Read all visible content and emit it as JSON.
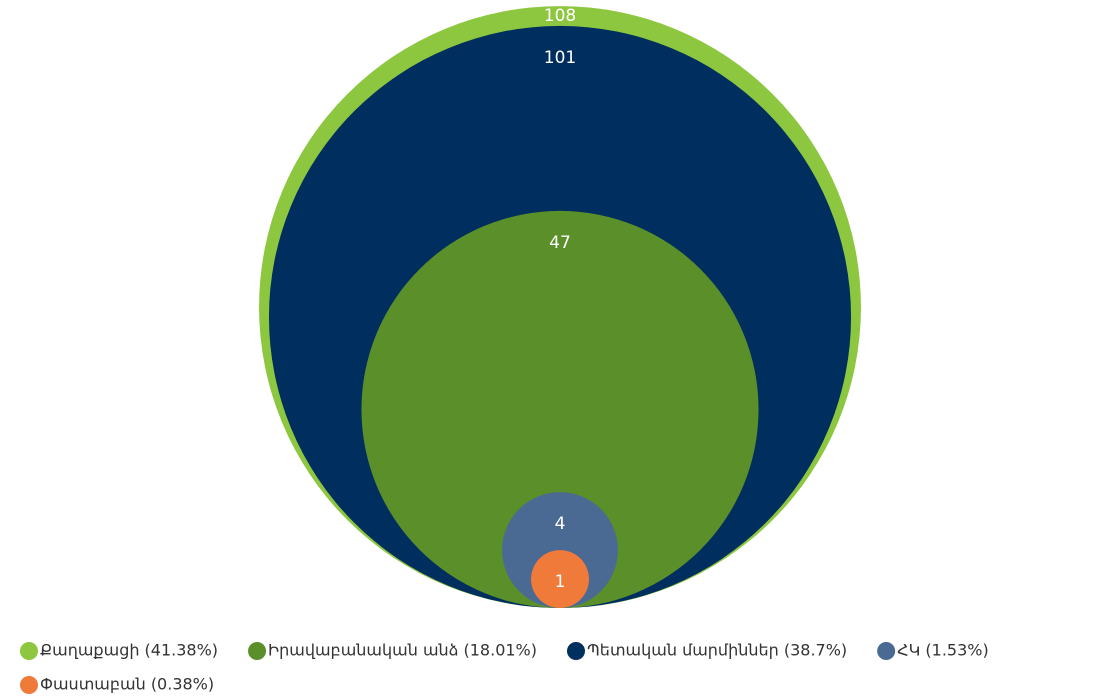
{
  "chart_data": {
    "type": "bubble",
    "series": [
      {
        "name": "Քաղաքացի (41.38%)",
        "color": "#8dc63f",
        "values": [
          108
        ]
      },
      {
        "name": "Պետական մարմիններ (38.7%)",
        "color": "#002f5f",
        "values": [
          101
        ]
      },
      {
        "name": "Իրավաբանական անձ (18.01%)",
        "color": "#5a8f29",
        "values": [
          47
        ]
      },
      {
        "name": "ՀԿ (1.53%)",
        "color": "#4a6a94",
        "values": [
          4
        ]
      },
      {
        "name": "Փաստաբան (0.38%)",
        "color": "#f07a3a",
        "values": [
          1
        ]
      }
    ],
    "legend_order": [
      0,
      2,
      1,
      3,
      4
    ]
  }
}
